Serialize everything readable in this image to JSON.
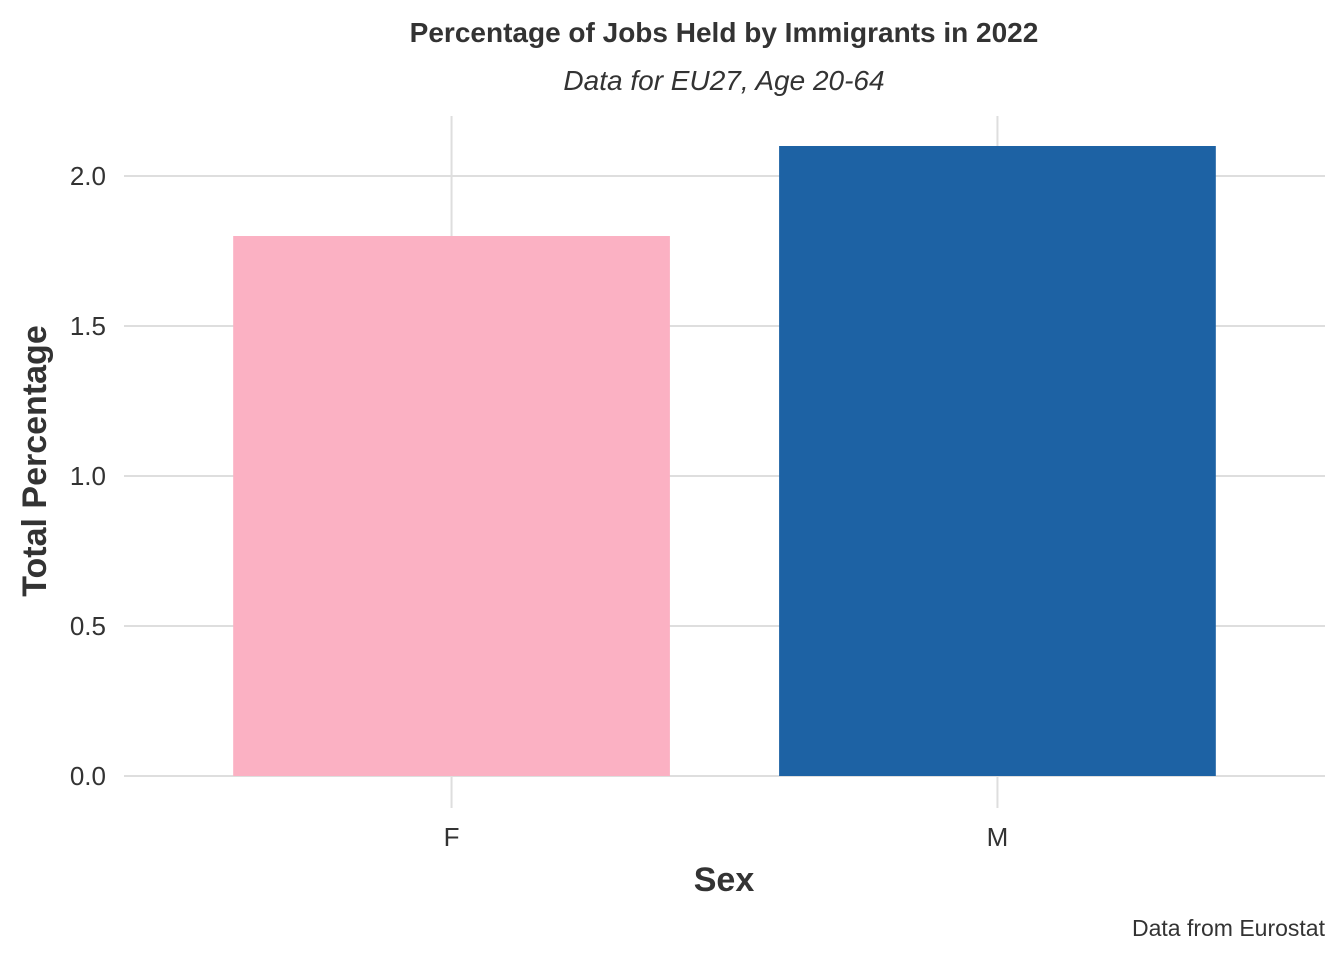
{
  "chart_data": {
    "type": "bar",
    "title": "Percentage of Jobs Held by Immigrants in 2022",
    "subtitle": "Data for EU27, Age 20-64",
    "xlabel": "Sex",
    "ylabel": "Total Percentage",
    "caption": "Data from Eurostat",
    "categories": [
      "F",
      "M"
    ],
    "values": [
      1.8,
      2.1
    ],
    "colors": [
      "#fbb1c3",
      "#1d62a4"
    ],
    "ylim": [
      0,
      2.2
    ],
    "yticks": [
      "0.0",
      "0.5",
      "1.0",
      "1.5",
      "2.0"
    ],
    "ytick_values": [
      0,
      0.5,
      1.0,
      1.5,
      2.0
    ],
    "grid": true,
    "legend": "none"
  }
}
